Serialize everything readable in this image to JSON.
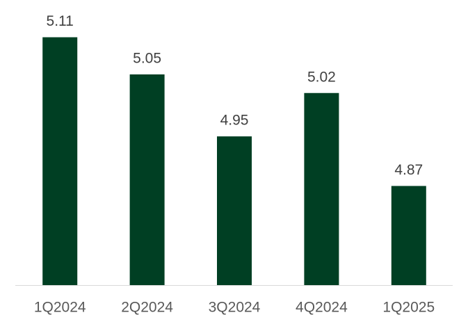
{
  "chart_data": {
    "type": "bar",
    "categories": [
      "1Q2024",
      "2Q2024",
      "3Q2024",
      "4Q2024",
      "1Q2025"
    ],
    "values": [
      5.11,
      5.05,
      4.95,
      5.02,
      4.87
    ],
    "color": "#003f23",
    "ylim": [
      4.71,
      5.16
    ]
  }
}
